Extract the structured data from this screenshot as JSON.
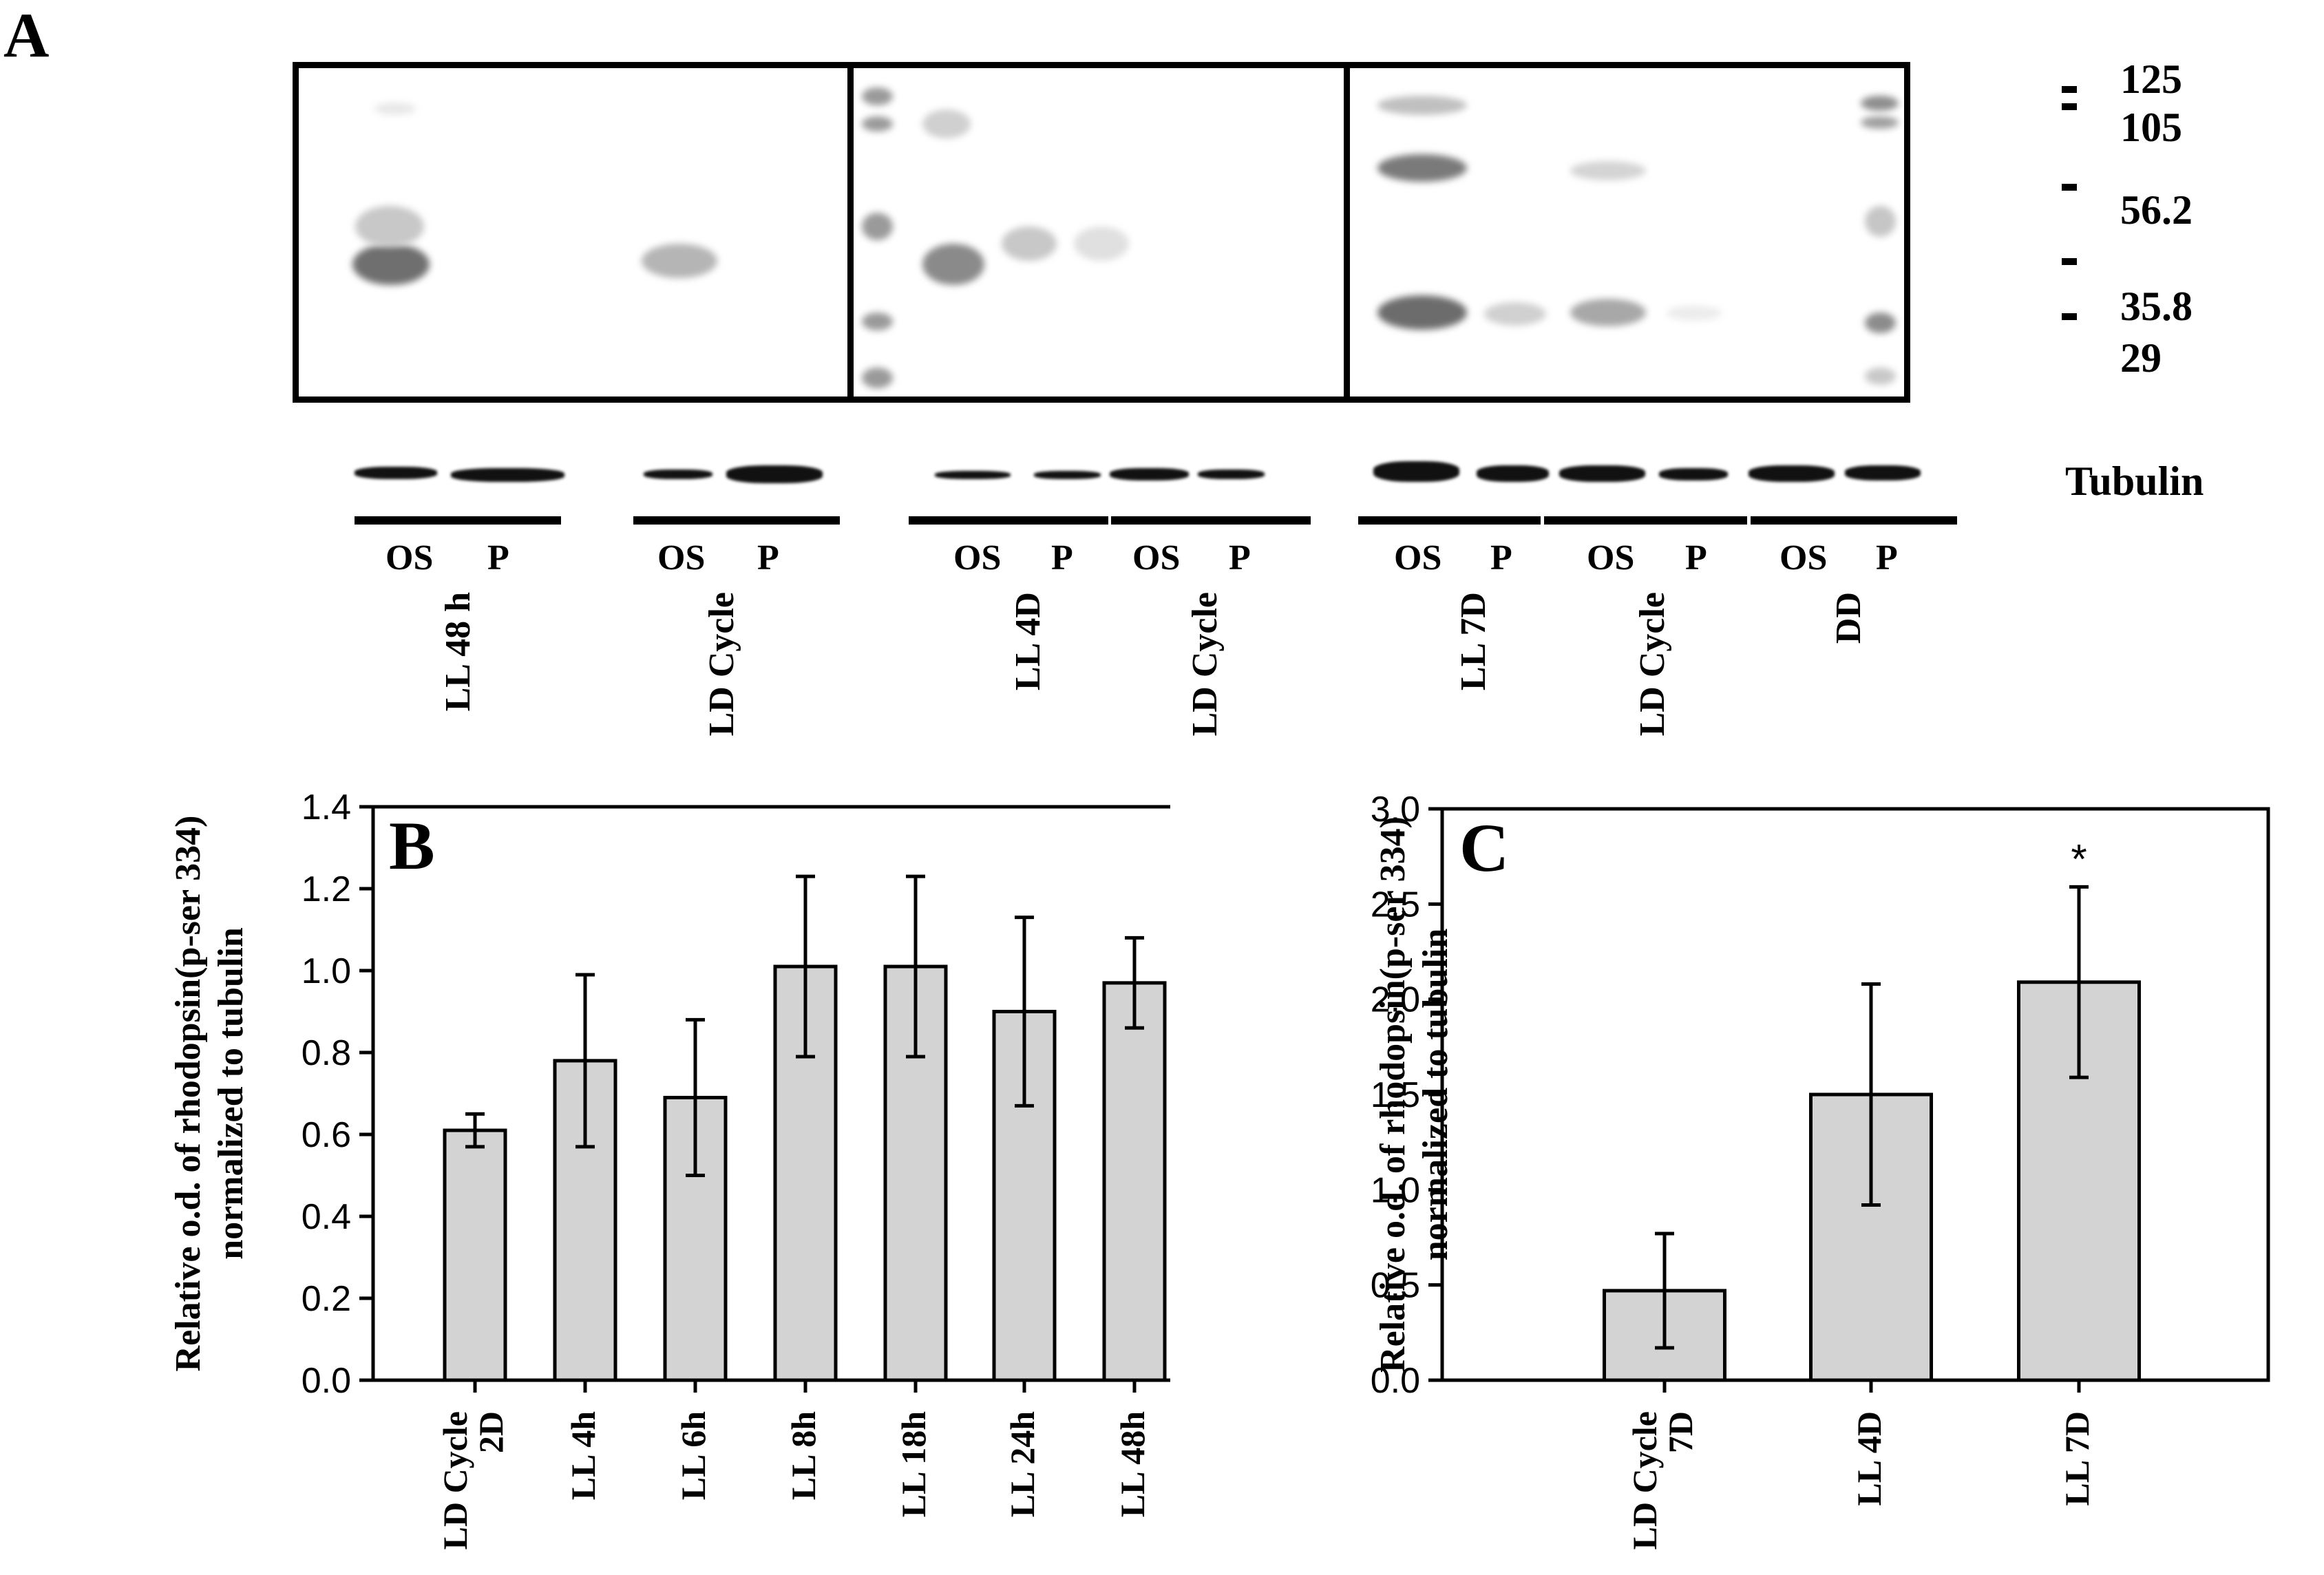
{
  "panel_a": {
    "letter": "A",
    "mw_markers": [
      "125",
      "105",
      "56.2",
      "35.8",
      "29"
    ],
    "tubulin_label": "Tubulin",
    "lane_groups": [
      {
        "condition": "LL 48 h",
        "lanes": [
          "OS",
          "P"
        ]
      },
      {
        "condition": "LD Cycle",
        "lanes": [
          "OS",
          "P"
        ]
      },
      {
        "condition": "LL 4D",
        "lanes": [
          "OS",
          "P"
        ]
      },
      {
        "condition": "LD Cycle",
        "lanes": [
          "OS",
          "P"
        ]
      },
      {
        "condition": "LL 7D",
        "lanes": [
          "OS",
          "P"
        ]
      },
      {
        "condition": "LD Cycle",
        "lanes": [
          "OS",
          "P"
        ]
      },
      {
        "condition": "DD",
        "lanes": [
          "OS",
          "P"
        ]
      }
    ]
  },
  "chart_data": [
    {
      "type": "bar",
      "panel": "B",
      "title": "",
      "xlabel": "",
      "ylabel_line1": "Relative o.d. of rhodopsin(p-ser 334)",
      "ylabel_line2": "normalized to tubulin",
      "categories": [
        "LD Cycle\n2D",
        "LL 4h",
        "LL 6h",
        "LL 8h",
        "LL 18h",
        "LL 24h",
        "LL 48h"
      ],
      "values": [
        0.61,
        0.78,
        0.69,
        1.01,
        1.01,
        0.9,
        0.97
      ],
      "errors": [
        0.04,
        0.21,
        0.19,
        0.22,
        0.22,
        0.23,
        0.11
      ],
      "ylim": [
        0,
        1.4
      ],
      "yticks": [
        "0.0",
        "0.2",
        "0.4",
        "0.6",
        "0.8",
        "1.0",
        "1.2",
        "1.4"
      ],
      "ytick_values": [
        0,
        0.2,
        0.4,
        0.6,
        0.8,
        1.0,
        1.2,
        1.4
      ],
      "bar_color": "#d3d3d3",
      "grid": false,
      "annotations": []
    },
    {
      "type": "bar",
      "panel": "C",
      "title": "",
      "xlabel": "",
      "ylabel_line1": "Relative o.d. of rhodopsin(p-ser 334)",
      "ylabel_line2": "normalized to tubulin",
      "categories": [
        "LD Cycle\n7D",
        "LL 4D",
        "LL 7D"
      ],
      "values": [
        0.47,
        1.5,
        2.09
      ],
      "errors": [
        0.3,
        0.58,
        0.5
      ],
      "ylim": [
        0,
        3.0
      ],
      "yticks": [
        "0.0",
        "0.5",
        "1.0",
        "1.5",
        "2.0",
        "2.5",
        "3.0"
      ],
      "ytick_values": [
        0,
        0.5,
        1.0,
        1.5,
        2.0,
        2.5,
        3.0
      ],
      "bar_color": "#d3d3d3",
      "grid": false,
      "annotations": [
        "",
        "",
        "*"
      ]
    }
  ]
}
